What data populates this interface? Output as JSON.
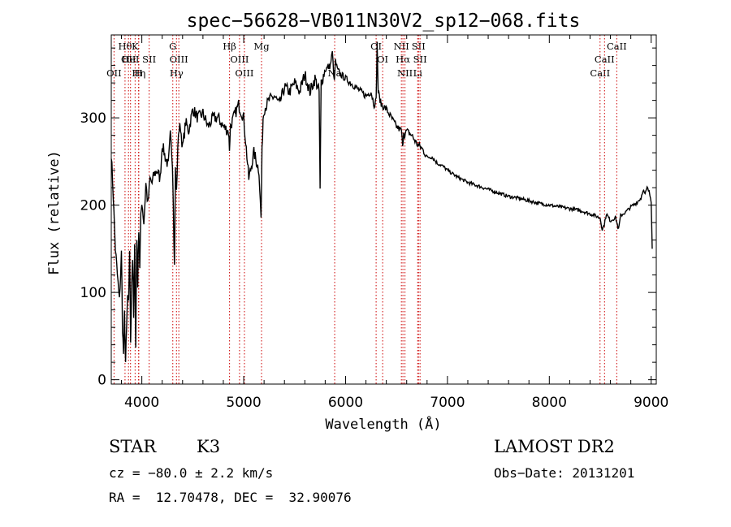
{
  "chart_data": {
    "type": "line",
    "title": "spec−56628−VB011N30V2_sp12−068.fits",
    "xlabel": "Wavelength (Å)",
    "ylabel": "Flux (relative)",
    "xlim": [
      3700,
      9050
    ],
    "ylim": [
      -5,
      395
    ],
    "x_ticks": [
      4000,
      5000,
      6000,
      7000,
      8000,
      9000
    ],
    "y_ticks": [
      0,
      100,
      200,
      300
    ],
    "series": [
      {
        "x": [
          3700,
          3720,
          3740,
          3760,
          3780,
          3800,
          3810,
          3820,
          3830,
          3840,
          3850,
          3860,
          3870,
          3880,
          3890,
          3900,
          3910,
          3920,
          3930,
          3940,
          3950,
          3960,
          3970,
          3980,
          3990,
          4000,
          4020,
          4040,
          4060,
          4080,
          4100,
          4120,
          4150,
          4180,
          4200,
          4230,
          4260,
          4280,
          4300,
          4310,
          4320,
          4330,
          4340,
          4360,
          4380,
          4400,
          4430,
          4460,
          4500,
          4550,
          4600,
          4650,
          4700,
          4750,
          4800,
          4850,
          4860,
          4870,
          4900,
          4950,
          5000,
          5050,
          5100,
          5150,
          5170,
          5180,
          5190,
          5200,
          5250,
          5300,
          5350,
          5400,
          5450,
          5500,
          5550,
          5600,
          5650,
          5700,
          5740,
          5750,
          5760,
          5800,
          5850,
          5870,
          5890,
          5900,
          5920,
          5950,
          6000,
          6050,
          6100,
          6150,
          6200,
          6250,
          6280,
          6300,
          6310,
          6320,
          6350,
          6400,
          6450,
          6500,
          6550,
          6560,
          6570,
          6580,
          6600,
          6650,
          6700,
          6750,
          6800,
          6850,
          6900,
          6950,
          7000,
          7100,
          7200,
          7300,
          7400,
          7500,
          7600,
          7700,
          7800,
          7900,
          8000,
          8100,
          8200,
          8300,
          8400,
          8450,
          8500,
          8520,
          8540,
          8560,
          8600,
          8650,
          8680,
          8700,
          8750,
          8800,
          8850,
          8900,
          8920,
          8940,
          8960,
          8980,
          9000,
          9010
        ],
        "y": [
          260,
          210,
          150,
          120,
          90,
          145,
          60,
          30,
          75,
          20,
          55,
          95,
          85,
          150,
          45,
          110,
          140,
          70,
          150,
          40,
          160,
          110,
          175,
          130,
          185,
          205,
          180,
          225,
          200,
          230,
          225,
          235,
          240,
          230,
          270,
          255,
          245,
          280,
          250,
          200,
          130,
          240,
          215,
          285,
          290,
          265,
          295,
          285,
          310,
          300,
          305,
          290,
          300,
          300,
          290,
          285,
          265,
          290,
          300,
          315,
          300,
          230,
          260,
          240,
          185,
          260,
          300,
          310,
          320,
          325,
          315,
          335,
          330,
          340,
          330,
          350,
          330,
          345,
          330,
          215,
          340,
          355,
          360,
          375,
          340,
          365,
          355,
          350,
          345,
          340,
          335,
          330,
          325,
          330,
          315,
          320,
          385,
          330,
          315,
          310,
          300,
          290,
          285,
          265,
          285,
          280,
          285,
          280,
          270,
          265,
          255,
          255,
          248,
          245,
          240,
          232,
          226,
          222,
          218,
          214,
          210,
          208,
          205,
          202,
          200,
          198,
          196,
          194,
          190,
          188,
          185,
          172,
          178,
          190,
          182,
          186,
          172,
          188,
          192,
          198,
          202,
          208,
          218,
          212,
          220,
          215,
          205,
          150
        ]
      }
    ],
    "line_markers": [
      {
        "wave": 3835,
        "label": "Hθ",
        "row": 0
      },
      {
        "wave": 3869,
        "label": "OII",
        "row": 1
      },
      {
        "wave": 3889,
        "label": "HeI",
        "row": 1
      },
      {
        "wave": 3727,
        "label": "OII",
        "row": 2
      },
      {
        "wave": 3970,
        "label": "Hη",
        "row": 2
      },
      {
        "wave": 3934,
        "label": "K",
        "row": 0
      },
      {
        "wave": 3968,
        "label": "H",
        "row": 2
      },
      {
        "wave": 4072,
        "label": "SII",
        "row": 1
      },
      {
        "wave": 4304,
        "label": "G",
        "row": 0
      },
      {
        "wave": 4363,
        "label": "OIII",
        "row": 1
      },
      {
        "wave": 4340,
        "label": "Hγ",
        "row": 2
      },
      {
        "wave": 4861,
        "label": "Hβ",
        "row": 0
      },
      {
        "wave": 4959,
        "label": "OIII",
        "row": 1
      },
      {
        "wave": 5007,
        "label": "OIII",
        "row": 2
      },
      {
        "wave": 5175,
        "label": "Mg",
        "row": 0
      },
      {
        "wave": 5893,
        "label": "Na",
        "row": 2
      },
      {
        "wave": 6300,
        "label": "OI",
        "row": 0
      },
      {
        "wave": 6364,
        "label": "OI",
        "row": 1
      },
      {
        "wave": 6548,
        "label": "NII",
        "row": 0
      },
      {
        "wave": 6563,
        "label": "Hα",
        "row": 1
      },
      {
        "wave": 6583,
        "label": "NII",
        "row": 2
      },
      {
        "wave": 6716,
        "label": "SII",
        "row": 0
      },
      {
        "wave": 6731,
        "label": "SII",
        "row": 1
      },
      {
        "wave": 6708,
        "label": "Li",
        "row": 2
      },
      {
        "wave": 8498,
        "label": "CaII",
        "row": 2
      },
      {
        "wave": 8542,
        "label": "CaII",
        "row": 1
      },
      {
        "wave": 8662,
        "label": "CaII",
        "row": 0
      }
    ]
  },
  "info": {
    "class": "STAR",
    "subclass": "K3",
    "survey": "LAMOST DR2",
    "cz": "cz = −80.0 ± 2.2 km/s",
    "obs_date": "Obs−Date: 20131201",
    "radec": "RA =  12.70478, DEC =  32.90076"
  }
}
